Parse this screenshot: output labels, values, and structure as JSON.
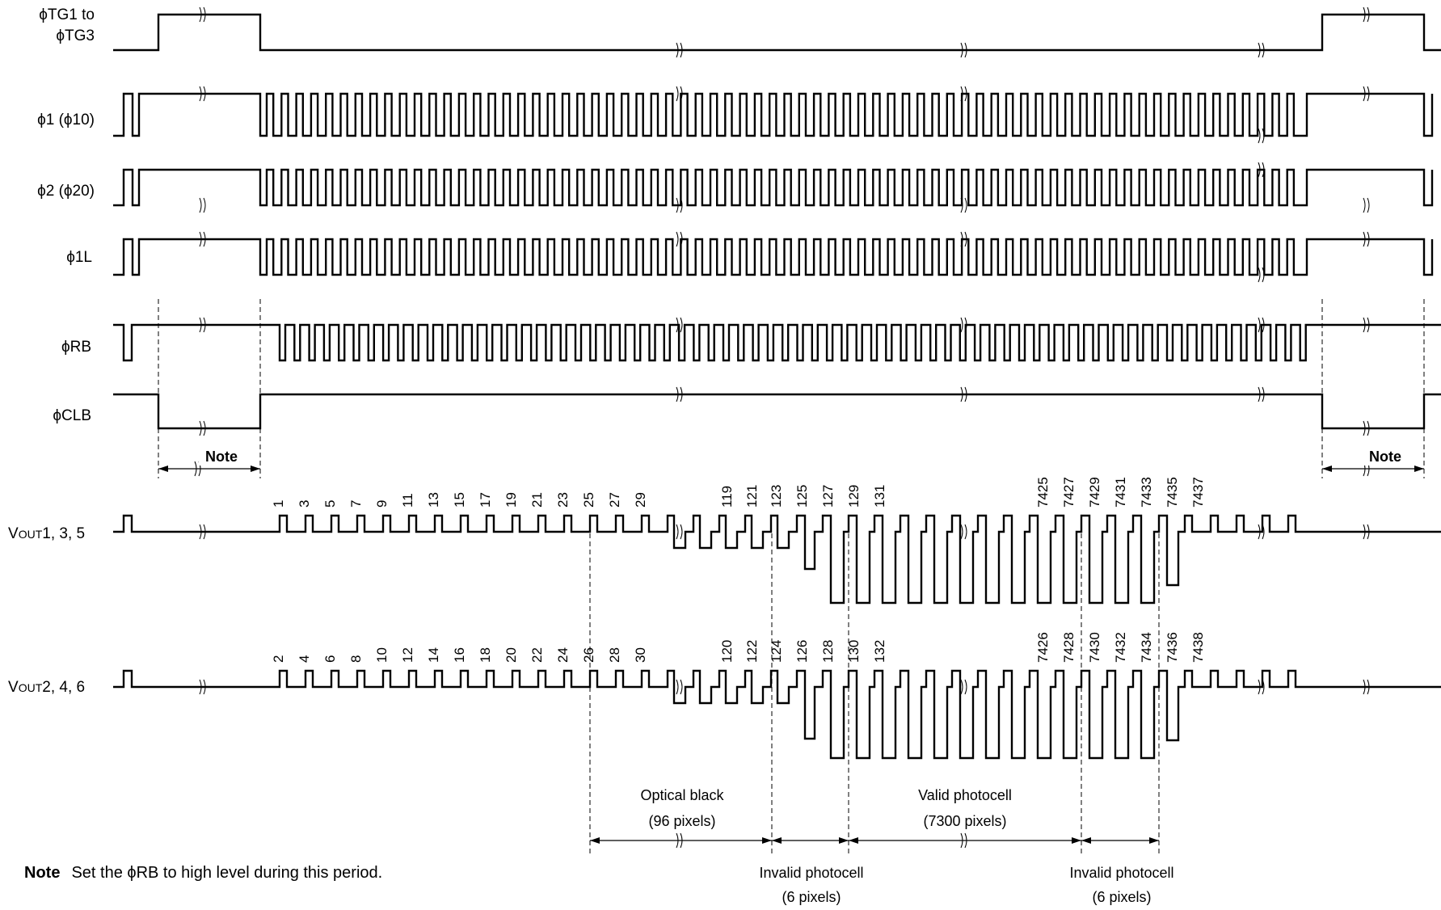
{
  "signals": {
    "tg": {
      "name_line1": "ϕTG1 to",
      "name_line2": "ϕTG3"
    },
    "phi1": {
      "name": "ϕ1 (ϕ10)"
    },
    "phi2": {
      "name": "ϕ2 (ϕ20)"
    },
    "phi1l": {
      "name": "ϕ1L"
    },
    "rb": {
      "name": "ϕRB"
    },
    "clb": {
      "name": "ϕCLB"
    },
    "vout_odd": {
      "prefix": "V",
      "subscript": "OUT",
      "suffix": "1, 3, 5"
    },
    "vout_even": {
      "prefix": "V",
      "subscript": "OUT",
      "suffix": "2, 4, 6"
    }
  },
  "pixels": {
    "odd": [
      "1",
      "3",
      "5",
      "7",
      "9",
      "11",
      "13",
      "15",
      "17",
      "19",
      "21",
      "23",
      "25",
      "27",
      "29",
      "119",
      "121",
      "123",
      "125",
      "127",
      "129",
      "131",
      "7425",
      "7427",
      "7429",
      "7431",
      "7433",
      "7435",
      "7437"
    ],
    "even": [
      "2",
      "4",
      "6",
      "8",
      "10",
      "12",
      "14",
      "16",
      "18",
      "20",
      "22",
      "24",
      "26",
      "28",
      "30",
      "120",
      "122",
      "124",
      "126",
      "128",
      "130",
      "132",
      "7426",
      "7428",
      "7430",
      "7432",
      "7434",
      "7436",
      "7438"
    ]
  },
  "regions": {
    "optical_black": {
      "line1": "Optical black",
      "line2": "(96 pixels)"
    },
    "invalid_1": {
      "line1": "Invalid photocell",
      "line2": "(6 pixels)"
    },
    "valid": {
      "line1": "Valid photocell",
      "line2": "(7300 pixels)"
    },
    "invalid_2": {
      "line1": "Invalid photocell",
      "line2": "(6 pixels)"
    }
  },
  "note_markers": {
    "left": "Note",
    "right": "Note"
  },
  "footnote": {
    "label": "Note",
    "text": "Set the ϕRB to high level during this period."
  }
}
